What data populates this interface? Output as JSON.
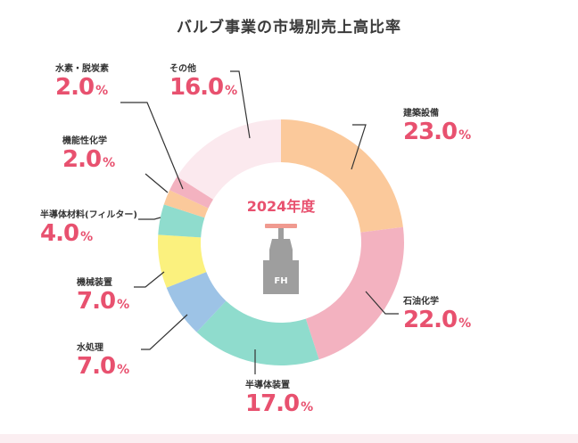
{
  "title": "バルブ事業の市場別売上高比率",
  "center": {
    "year": "2024年度",
    "logo_text": "FH"
  },
  "unit": "%",
  "chart_data": {
    "type": "pie",
    "title": "バルブ事業の市場別売上高比率",
    "donut": true,
    "center_label": "2024年度",
    "categories": [
      "建築設備",
      "石油化学",
      "半導体装置",
      "水処理",
      "機械装置",
      "半導体材料(フィルター)",
      "機能性化学",
      "水素・脱炭素",
      "その他"
    ],
    "values": [
      23.0,
      22.0,
      17.0,
      7.0,
      7.0,
      4.0,
      2.0,
      2.0,
      16.0
    ],
    "value_labels": [
      "23.0",
      "22.0",
      "17.0",
      "7.0",
      "7.0",
      "4.0",
      "2.0",
      "2.0",
      "16.0"
    ],
    "colors": [
      "#fbc99b",
      "#f3b2c0",
      "#8fdccd",
      "#9dc3e6",
      "#fbf17e",
      "#8fdccd",
      "#fbc99b",
      "#f3b2c0",
      "#fbe9ee"
    ]
  }
}
